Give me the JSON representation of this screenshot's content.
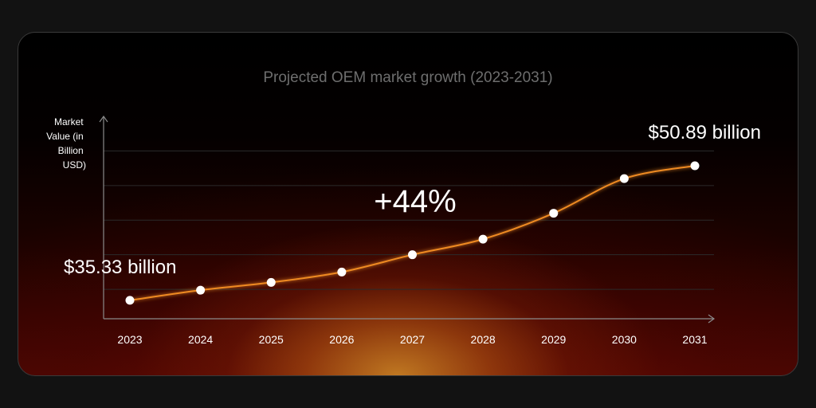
{
  "chart_data": {
    "type": "line",
    "title": "Projected OEM market growth (2023-2031)",
    "ylabel": "Market Value (in Billion USD)",
    "ylabel_lines": [
      "Market",
      "Value (in",
      "Billion",
      "USD)"
    ],
    "categories": [
      "2023",
      "2024",
      "2025",
      "2026",
      "2027",
      "2028",
      "2029",
      "2030",
      "2031"
    ],
    "series": [
      {
        "values": [
          35.33,
          36.5,
          37.4,
          38.6,
          40.6,
          42.4,
          45.4,
          49.4,
          50.89
        ]
      }
    ],
    "ylim": [
      33.2,
      56.6
    ],
    "gridlines": [
      36.6,
      40.6,
      44.6,
      48.6,
      52.6
    ],
    "annotations": {
      "start_label": "$35.33 billion",
      "end_label": "$50.89 billion",
      "growth_label": "+44%"
    },
    "colors": {
      "line": "#ee8a24",
      "point": "#ffffff",
      "axis": "#8a8a8a",
      "grid": "#2b2b2b",
      "title": "#6e6e6e",
      "text": "#ffffff"
    }
  }
}
